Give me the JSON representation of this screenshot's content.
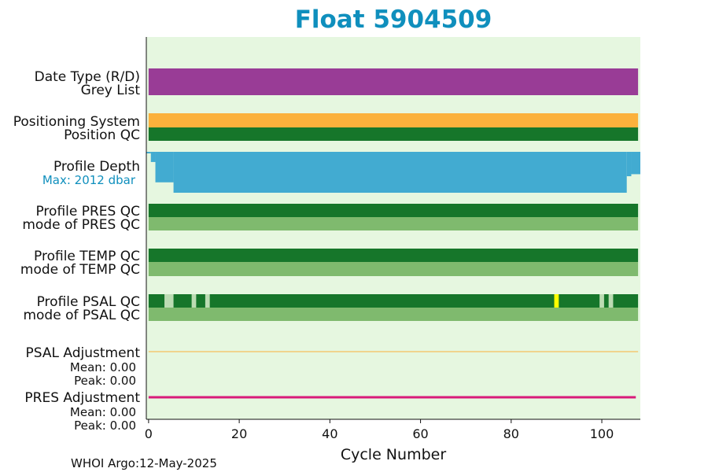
{
  "chart_data": {
    "type": "table",
    "title": "Float 5904509",
    "xlabel": "Cycle Number",
    "xlim": [
      -0.5,
      108.5
    ],
    "x_ticks": [
      0,
      20,
      40,
      60,
      80,
      100
    ],
    "x_tick_labels": [
      "0",
      "20",
      "40",
      "60",
      "80",
      "100"
    ],
    "rows": [
      {
        "label": "Date Type (R/D)",
        "color": "#993c96",
        "segments": [
          [
            0,
            108
          ]
        ]
      },
      {
        "label": "Grey List",
        "color": "#993c96",
        "segments": [
          [
            0,
            108
          ]
        ]
      },
      {
        "label": "Positioning System",
        "color": "#fbb13c",
        "segments": [
          [
            0,
            108
          ]
        ]
      },
      {
        "label": "Position QC",
        "color": "#16762a",
        "segments": [
          [
            0,
            108
          ]
        ]
      },
      {
        "label": "Profile PRES QC",
        "color": "#16762a",
        "segments": [
          [
            0,
            108
          ]
        ]
      },
      {
        "label": "mode of PRES QC",
        "color": "#7fba6e",
        "segments": [
          [
            0,
            108
          ]
        ]
      },
      {
        "label": "Profile TEMP QC",
        "color": "#16762a",
        "segments": [
          [
            0,
            108
          ]
        ]
      },
      {
        "label": "mode of TEMP QC",
        "color": "#7fba6e",
        "segments": [
          [
            0,
            108
          ]
        ]
      },
      {
        "label": "Profile PSAL QC",
        "color": "#16762a",
        "segments": [
          [
            0,
            108
          ]
        ],
        "flags": [
          {
            "start": 3.5,
            "end": 5.5,
            "color": "#bcdcb3"
          },
          {
            "start": 9.5,
            "end": 10.5,
            "color": "#bcdcb3"
          },
          {
            "start": 12.5,
            "end": 13.5,
            "color": "#bcdcb3"
          },
          {
            "start": 89.5,
            "end": 90.5,
            "color": "#ffff00"
          },
          {
            "start": 99.5,
            "end": 100.5,
            "color": "#bcdcb3"
          },
          {
            "start": 101.5,
            "end": 102.5,
            "color": "#bcdcb3"
          }
        ]
      },
      {
        "label": "mode of PSAL QC",
        "color": "#7fba6e",
        "segments": [
          [
            0,
            108
          ]
        ]
      }
    ],
    "profile_depth": {
      "label": "Profile Depth",
      "max_label": "Max: 2012 dbar",
      "color": "#42abd1",
      "max_dbar": 2012,
      "steps": [
        {
          "start": -0.5,
          "end": 0.5,
          "depth": 0
        },
        {
          "start": 0.5,
          "end": 1.5,
          "depth": 500
        },
        {
          "start": 1.5,
          "end": 5.5,
          "depth": 1500
        },
        {
          "start": 5.5,
          "end": 105.5,
          "depth": 2012
        },
        {
          "start": 105.5,
          "end": 106.5,
          "depth": 1200
        },
        {
          "start": 106.5,
          "end": 108.5,
          "depth": 1100
        }
      ]
    },
    "psal_adjustment": {
      "label": "PSAL Adjustment",
      "mean_label": "Mean: 0.00",
      "peak_label": "Peak: 0.00",
      "mean": 0.0,
      "peak": 0.0,
      "color": "#fbb13c"
    },
    "pres_adjustment": {
      "label": "PRES Adjustment",
      "mean_label": "Mean: 0.00",
      "peak_label": "Peak: 0.00",
      "mean": 0.0,
      "peak": 0.0,
      "color": "#d81b7a"
    },
    "colors": {
      "title": "#0f8fbd",
      "background": "#e6f7e0",
      "max_label": "#0f8fbd"
    }
  },
  "footer": "WHOI Argo:12-May-2025"
}
